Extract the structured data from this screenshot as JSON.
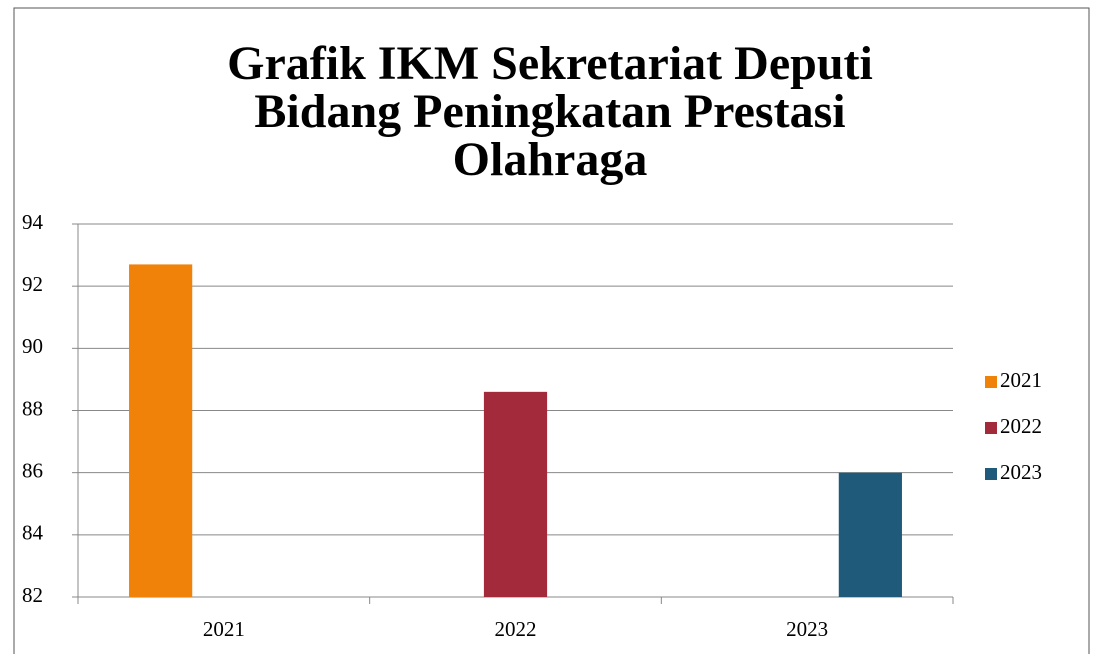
{
  "chart_data": {
    "type": "bar",
    "title": "Grafik IKM Sekretariat Deputi Bidang Peningkatan Prestasi Olahraga",
    "categories": [
      "2021",
      "2022",
      "2023"
    ],
    "series": [
      {
        "name": "2021",
        "color": "#f0820a",
        "values": [
          92.7,
          null,
          null
        ]
      },
      {
        "name": "2022",
        "color": "#a32a3a",
        "values": [
          null,
          88.6,
          null
        ]
      },
      {
        "name": "2023",
        "color": "#1f5a7a",
        "values": [
          null,
          null,
          86.0
        ]
      }
    ],
    "ylim": [
      82,
      94
    ],
    "yticks": [
      82,
      84,
      86,
      88,
      90,
      92,
      94
    ],
    "grid": true,
    "legend": "right"
  }
}
